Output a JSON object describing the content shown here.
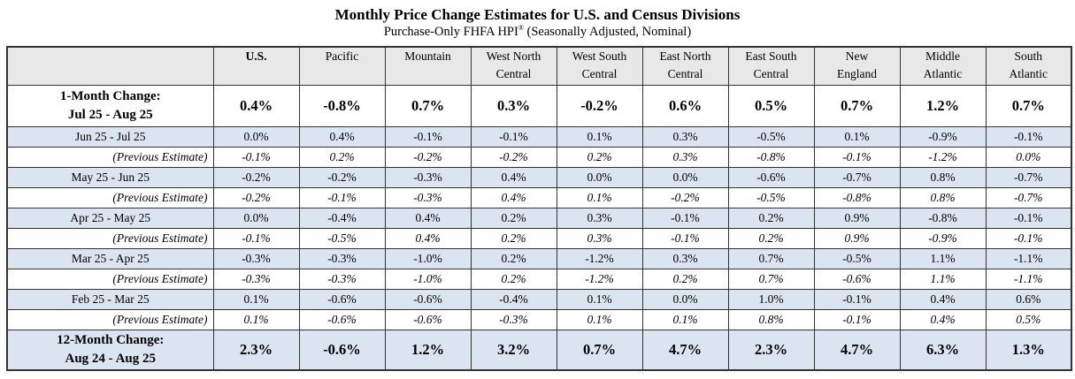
{
  "title": "Monthly Price Change Estimates for U.S. and Census Divisions",
  "subtitle": {
    "prefix": "Purchase-Only FHFA HPI",
    "superscript": "®",
    "suffix": " (Seasonally Adjusted, Nominal)"
  },
  "colors": {
    "header_bg": "#e8e8e8",
    "highlight_row_bg": "#dbe5f1",
    "border": "#333333"
  },
  "table": {
    "corner_label": "",
    "columns": [
      {
        "lines": [
          "U.S."
        ]
      },
      {
        "lines": [
          "Pacific"
        ]
      },
      {
        "lines": [
          "Mountain"
        ]
      },
      {
        "lines": [
          "West North",
          "Central"
        ]
      },
      {
        "lines": [
          "West South",
          "Central"
        ]
      },
      {
        "lines": [
          "East North",
          "Central"
        ]
      },
      {
        "lines": [
          "East South",
          "Central"
        ]
      },
      {
        "lines": [
          "New",
          "England"
        ]
      },
      {
        "lines": [
          "Middle",
          "Atlantic"
        ]
      },
      {
        "lines": [
          "South",
          "Atlantic"
        ]
      }
    ],
    "rows": [
      {
        "label_line1": "1-Month Change:",
        "label_line2": "Jul 25 - Aug 25",
        "row_type": "summary-white",
        "values": [
          "0.4%",
          "-0.8%",
          "0.7%",
          "0.3%",
          "-0.2%",
          "0.6%",
          "0.5%",
          "0.7%",
          "1.2%",
          "0.7%"
        ]
      },
      {
        "label_line1": "Jun 25 - Jul 25",
        "row_type": "month",
        "values": [
          "0.0%",
          "0.4%",
          "-0.1%",
          "-0.1%",
          "0.1%",
          "0.3%",
          "-0.5%",
          "0.1%",
          "-0.9%",
          "-0.1%"
        ]
      },
      {
        "label_line1": "(Previous Estimate)",
        "row_type": "previous-estimate",
        "values": [
          "-0.1%",
          "0.2%",
          "-0.2%",
          "-0.2%",
          "0.2%",
          "0.3%",
          "-0.8%",
          "-0.1%",
          "-1.2%",
          "0.0%"
        ]
      },
      {
        "label_line1": "May 25 - Jun 25",
        "row_type": "month",
        "values": [
          "-0.2%",
          "-0.2%",
          "-0.3%",
          "0.4%",
          "0.0%",
          "0.0%",
          "-0.6%",
          "-0.7%",
          "0.8%",
          "-0.7%"
        ]
      },
      {
        "label_line1": "(Previous Estimate)",
        "row_type": "previous-estimate",
        "values": [
          "-0.2%",
          "-0.1%",
          "-0.3%",
          "0.4%",
          "0.1%",
          "-0.2%",
          "-0.5%",
          "-0.8%",
          "0.8%",
          "-0.7%"
        ]
      },
      {
        "label_line1": "Apr 25 - May 25",
        "row_type": "month",
        "values": [
          "0.0%",
          "-0.4%",
          "0.4%",
          "0.2%",
          "0.3%",
          "-0.1%",
          "0.2%",
          "0.9%",
          "-0.8%",
          "-0.1%"
        ]
      },
      {
        "label_line1": "(Previous Estimate)",
        "row_type": "previous-estimate",
        "values": [
          "-0.1%",
          "-0.5%",
          "0.4%",
          "0.2%",
          "0.3%",
          "-0.1%",
          "0.2%",
          "0.9%",
          "-0.9%",
          "-0.1%"
        ]
      },
      {
        "label_line1": "Mar 25 - Apr 25",
        "row_type": "month",
        "values": [
          "-0.3%",
          "-0.3%",
          "-1.0%",
          "0.2%",
          "-1.2%",
          "0.3%",
          "0.7%",
          "-0.5%",
          "1.1%",
          "-1.1%"
        ]
      },
      {
        "label_line1": "(Previous Estimate)",
        "row_type": "previous-estimate",
        "values": [
          "-0.3%",
          "-0.3%",
          "-1.0%",
          "0.2%",
          "-1.2%",
          "0.2%",
          "0.7%",
          "-0.6%",
          "1.1%",
          "-1.1%"
        ]
      },
      {
        "label_line1": "Feb 25 - Mar 25",
        "row_type": "month",
        "values": [
          "0.1%",
          "-0.6%",
          "-0.6%",
          "-0.4%",
          "0.1%",
          "0.0%",
          "1.0%",
          "-0.1%",
          "0.4%",
          "0.6%"
        ]
      },
      {
        "label_line1": "(Previous Estimate)",
        "row_type": "previous-estimate",
        "values": [
          "0.1%",
          "-0.6%",
          "-0.6%",
          "-0.3%",
          "0.1%",
          "0.1%",
          "0.8%",
          "-0.1%",
          "0.4%",
          "0.5%"
        ]
      },
      {
        "label_line1": "12-Month Change:",
        "label_line2": "Aug 24 - Aug 25",
        "row_type": "summary-blue",
        "values": [
          "2.3%",
          "-0.6%",
          "1.2%",
          "3.2%",
          "0.7%",
          "4.7%",
          "2.3%",
          "4.7%",
          "6.3%",
          "1.3%"
        ]
      }
    ]
  }
}
